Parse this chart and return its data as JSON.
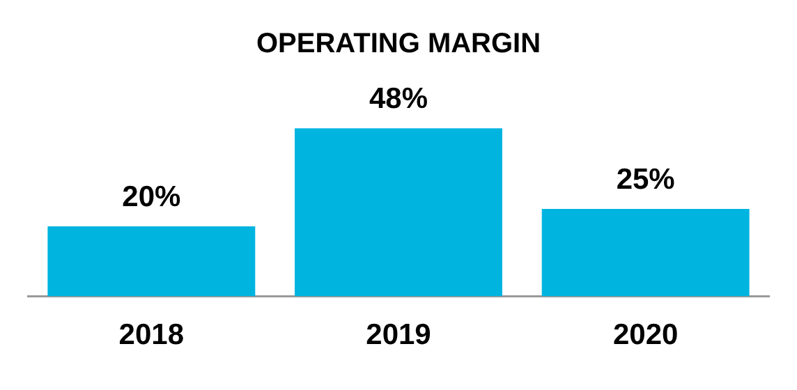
{
  "chart_data": {
    "type": "bar",
    "title": "OPERATING MARGIN",
    "categories": [
      "2018",
      "2019",
      "2020"
    ],
    "values": [
      20,
      48,
      25
    ],
    "value_labels": [
      "20%",
      "48%",
      "25%"
    ],
    "color": "#00b4e0",
    "grid": false,
    "legend": false,
    "tick_labels": "x"
  }
}
